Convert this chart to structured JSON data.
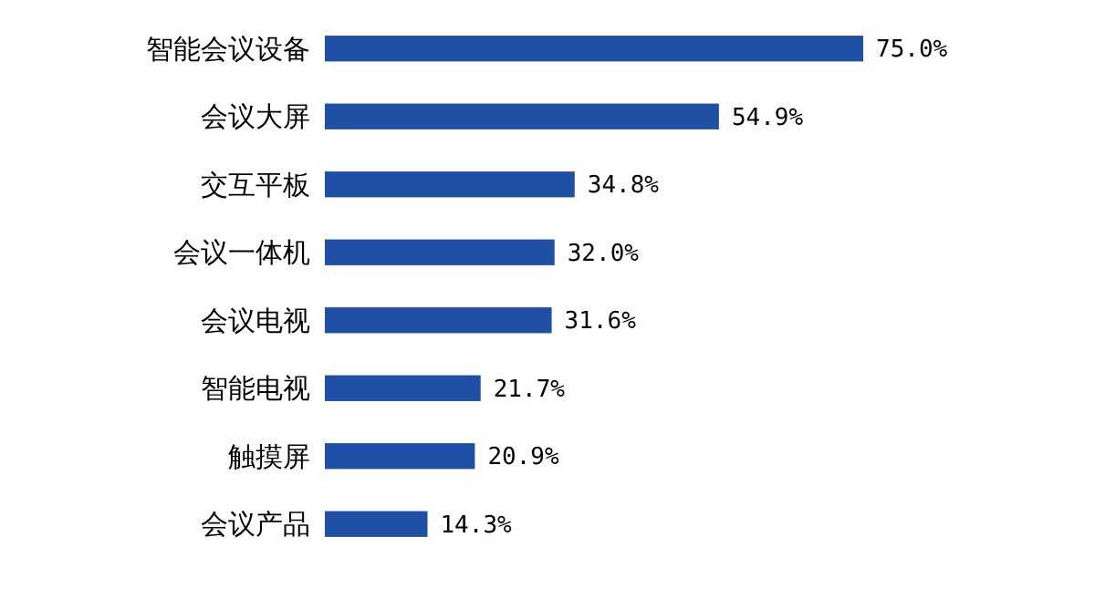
{
  "chart_data": {
    "type": "bar",
    "orientation": "horizontal",
    "categories": [
      "智能会议设备",
      "会议大屏",
      "交互平板",
      "会议一体机",
      "会议电视",
      "智能电视",
      "触摸屏",
      "会议产品"
    ],
    "values": [
      75.0,
      54.9,
      34.8,
      32.0,
      31.6,
      21.7,
      20.9,
      14.3
    ],
    "value_labels": [
      "75.0%",
      "54.9%",
      "34.8%",
      "32.0%",
      "31.6%",
      "21.7%",
      "20.9%",
      "14.3%"
    ],
    "color": "#1f50a6"
  }
}
